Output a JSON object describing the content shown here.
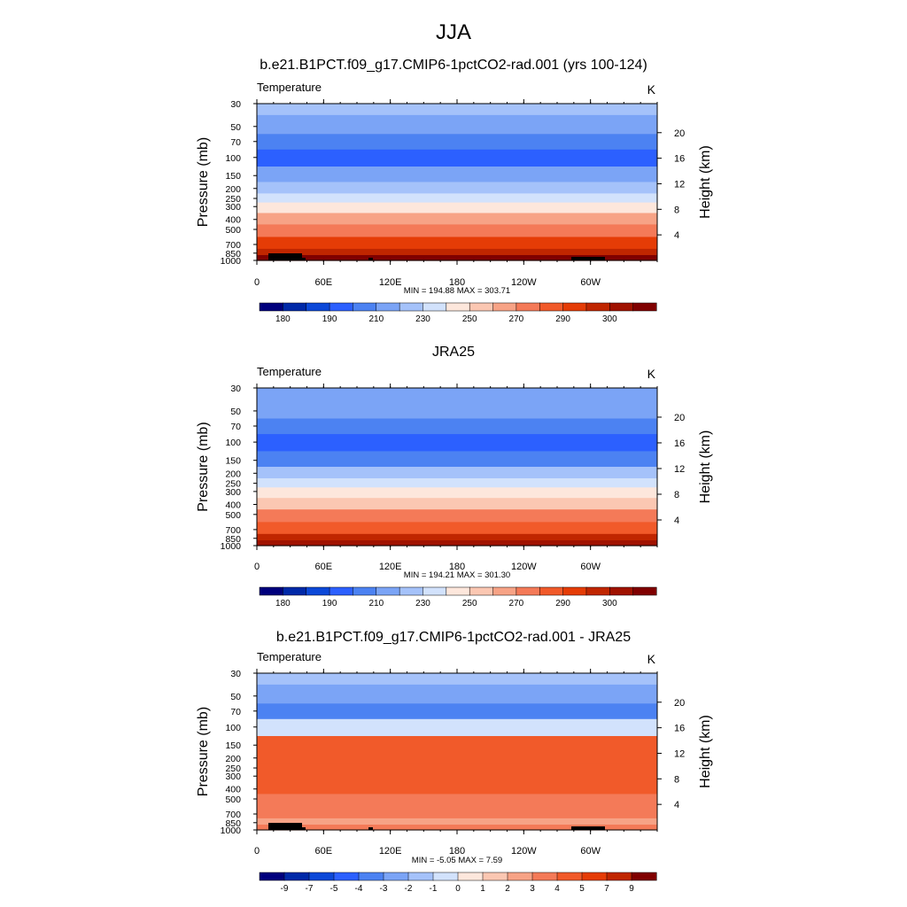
{
  "figure": {
    "title": "JJA"
  },
  "chart_data": [
    {
      "type": "heatmap",
      "title": "b.e21.B1PCT.f09_g17.CMIP6-1pctCO2-rad.001 (yrs 100-124)",
      "left_label": "Temperature",
      "units": "K",
      "ylabel": "Pressure (mb)",
      "y2label": "Height (km)",
      "x_ticks": [
        "0",
        "60E",
        "120E",
        "180",
        "120W",
        "60W"
      ],
      "y_ticks": [
        "30",
        "50",
        "70",
        "100",
        "150",
        "200",
        "250",
        "300",
        "400",
        "500",
        "700",
        "850",
        "1000"
      ],
      "y2_ticks": [
        "20",
        "16",
        "12",
        "8",
        "4"
      ],
      "stats": "MIN = 194.88  MAX = 303.71",
      "colorbar_labels": [
        "180",
        "190",
        "210",
        "230",
        "250",
        "270",
        "290",
        "300"
      ],
      "field": {
        "levels_mb": [
          30,
          50,
          70,
          100,
          150,
          200,
          250,
          300,
          400,
          500,
          700,
          850,
          1000
        ],
        "zonal_mean_K": [
          222,
          214,
          206,
          200,
          212,
          222,
          232,
          240,
          254,
          264,
          278,
          288,
          296
        ],
        "min": 194.88,
        "max": 303.71
      },
      "land_mask": true
    },
    {
      "type": "heatmap",
      "title": "JRA25",
      "left_label": "Temperature",
      "units": "K",
      "ylabel": "Pressure (mb)",
      "y2label": "Height (km)",
      "x_ticks": [
        "0",
        "60E",
        "120E",
        "180",
        "120W",
        "60W"
      ],
      "y_ticks": [
        "30",
        "50",
        "70",
        "100",
        "150",
        "200",
        "250",
        "300",
        "400",
        "500",
        "700",
        "850",
        "1000"
      ],
      "y2_ticks": [
        "20",
        "16",
        "12",
        "8",
        "4"
      ],
      "stats": "MIN = 194.21  MAX = 301.30",
      "colorbar_labels": [
        "180",
        "190",
        "210",
        "230",
        "250",
        "270",
        "290",
        "300"
      ],
      "field": {
        "levels_mb": [
          30,
          50,
          70,
          100,
          150,
          200,
          250,
          300,
          400,
          500,
          700,
          850,
          1000
        ],
        "zonal_mean_K": [
          218,
          212,
          205,
          198,
          210,
          222,
          232,
          240,
          252,
          262,
          276,
          286,
          294
        ],
        "min": 194.21,
        "max": 301.3
      },
      "land_mask": false
    },
    {
      "type": "heatmap",
      "title": "b.e21.B1PCT.f09_g17.CMIP6-1pctCO2-rad.001 - JRA25",
      "left_label": "Temperature",
      "units": "K",
      "ylabel": "Pressure (mb)",
      "y2label": "Height (km)",
      "x_ticks": [
        "0",
        "60E",
        "120E",
        "180",
        "120W",
        "60W"
      ],
      "y_ticks": [
        "30",
        "50",
        "70",
        "100",
        "150",
        "200",
        "250",
        "300",
        "400",
        "500",
        "700",
        "850",
        "1000"
      ],
      "y2_ticks": [
        "20",
        "16",
        "12",
        "8",
        "4"
      ],
      "stats": "MIN =  -5.05  MAX =   7.59",
      "colorbar_labels": [
        "-9",
        "-7",
        "-5",
        "-4",
        "-3",
        "-2",
        "-1",
        "0",
        "1",
        "2",
        "3",
        "4",
        "5",
        "7",
        "9"
      ],
      "field": {
        "levels_mb": [
          30,
          50,
          70,
          100,
          150,
          200,
          250,
          300,
          400,
          500,
          700,
          850,
          1000
        ],
        "zonal_mean_K": [
          -2.5,
          -3.5,
          -4.5,
          -0.3,
          5.5,
          6.5,
          6.5,
          6.5,
          6.0,
          4.5,
          4.0,
          3.0,
          3.5
        ],
        "min": -5.05,
        "max": 7.59
      },
      "land_mask": true
    }
  ],
  "colors": {
    "absolute_palette": [
      "#00007d",
      "#0029a8",
      "#0c48d8",
      "#2c60ff",
      "#4c82f2",
      "#7ba4f6",
      "#a5c2fa",
      "#d2e2fc",
      "#fde7dc",
      "#fbc7b2",
      "#f7a386",
      "#f47a58",
      "#f15a2a",
      "#e53c06",
      "#c02600",
      "#a01200",
      "#800000"
    ],
    "difference_palette": [
      "#00007d",
      "#0029a8",
      "#0c48d8",
      "#2c60ff",
      "#4c82f2",
      "#7ba4f6",
      "#a5c2fa",
      "#d2e2fc",
      "#fde7dc",
      "#fbc7b2",
      "#f7a386",
      "#f47a58",
      "#f15a2a",
      "#e53c06",
      "#c02600",
      "#800000"
    ],
    "land_mask": "#000000"
  }
}
